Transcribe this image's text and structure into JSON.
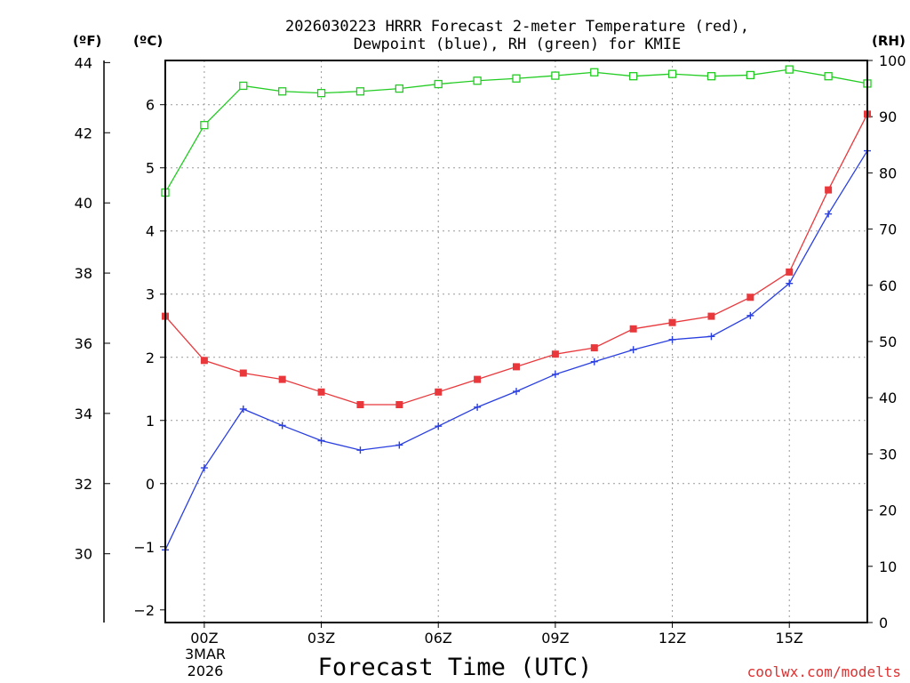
{
  "chart_data": {
    "type": "line",
    "title_line1": "2026030223 HRRR Forecast 2-meter Temperature (red),",
    "title_line2": "Dewpoint (blue), RH (green) for KMIE",
    "xlabel": "Forecast Time (UTC)",
    "credit": "coolwx.com/modelts",
    "date_label": [
      "3MAR",
      "2026"
    ],
    "units": {
      "fahrenheit": "(ºF)",
      "celsius": "(ºC)",
      "rh": "(RH)"
    },
    "x_range": [
      -1,
      17
    ],
    "x_ticks": [
      {
        "x": 0,
        "label": "00Z"
      },
      {
        "x": 3,
        "label": "03Z"
      },
      {
        "x": 6,
        "label": "06Z"
      },
      {
        "x": 9,
        "label": "09Z"
      },
      {
        "x": 12,
        "label": "12Z"
      },
      {
        "x": 15,
        "label": "15Z"
      }
    ],
    "y_celsius": {
      "range": [
        -2.2,
        6.7
      ],
      "ticks": [
        -2,
        -1,
        0,
        1,
        2,
        3,
        4,
        5,
        6
      ]
    },
    "y_fahrenheit": {
      "ticks": [
        30,
        32,
        34,
        36,
        38,
        40,
        42,
        44
      ]
    },
    "y_rh": {
      "range": [
        0,
        100
      ],
      "ticks": [
        0,
        10,
        20,
        30,
        40,
        50,
        60,
        70,
        80,
        90,
        100
      ]
    },
    "hours": [
      -1,
      0,
      1,
      2,
      3,
      4,
      5,
      6,
      7,
      8,
      9,
      10,
      11,
      12,
      13,
      14,
      15,
      16,
      17
    ],
    "series": [
      {
        "name": "Temperature",
        "axis": "celsius",
        "color": "#e8383c",
        "marker": "filled-square",
        "values": [
          2.65,
          1.95,
          1.75,
          1.65,
          1.45,
          1.25,
          1.25,
          1.45,
          1.65,
          1.85,
          2.05,
          2.15,
          2.45,
          2.55,
          2.65,
          2.95,
          3.35,
          4.65,
          5.85
        ]
      },
      {
        "name": "Dewpoint",
        "axis": "celsius",
        "color": "#2a3fe0",
        "marker": "plus",
        "values": [
          -1.05,
          0.25,
          1.18,
          0.92,
          0.68,
          0.53,
          0.61,
          0.91,
          1.21,
          1.46,
          1.73,
          1.93,
          2.12,
          2.28,
          2.33,
          2.66,
          3.17,
          4.27,
          5.27
        ]
      },
      {
        "name": "RH",
        "axis": "rh",
        "color": "#22cc22",
        "marker": "open-square",
        "values": [
          76.5,
          88.5,
          95.5,
          94.5,
          94.2,
          94.5,
          95.0,
          95.8,
          96.4,
          96.8,
          97.3,
          97.9,
          97.2,
          97.6,
          97.2,
          97.4,
          98.4,
          97.2,
          95.9
        ]
      }
    ]
  }
}
